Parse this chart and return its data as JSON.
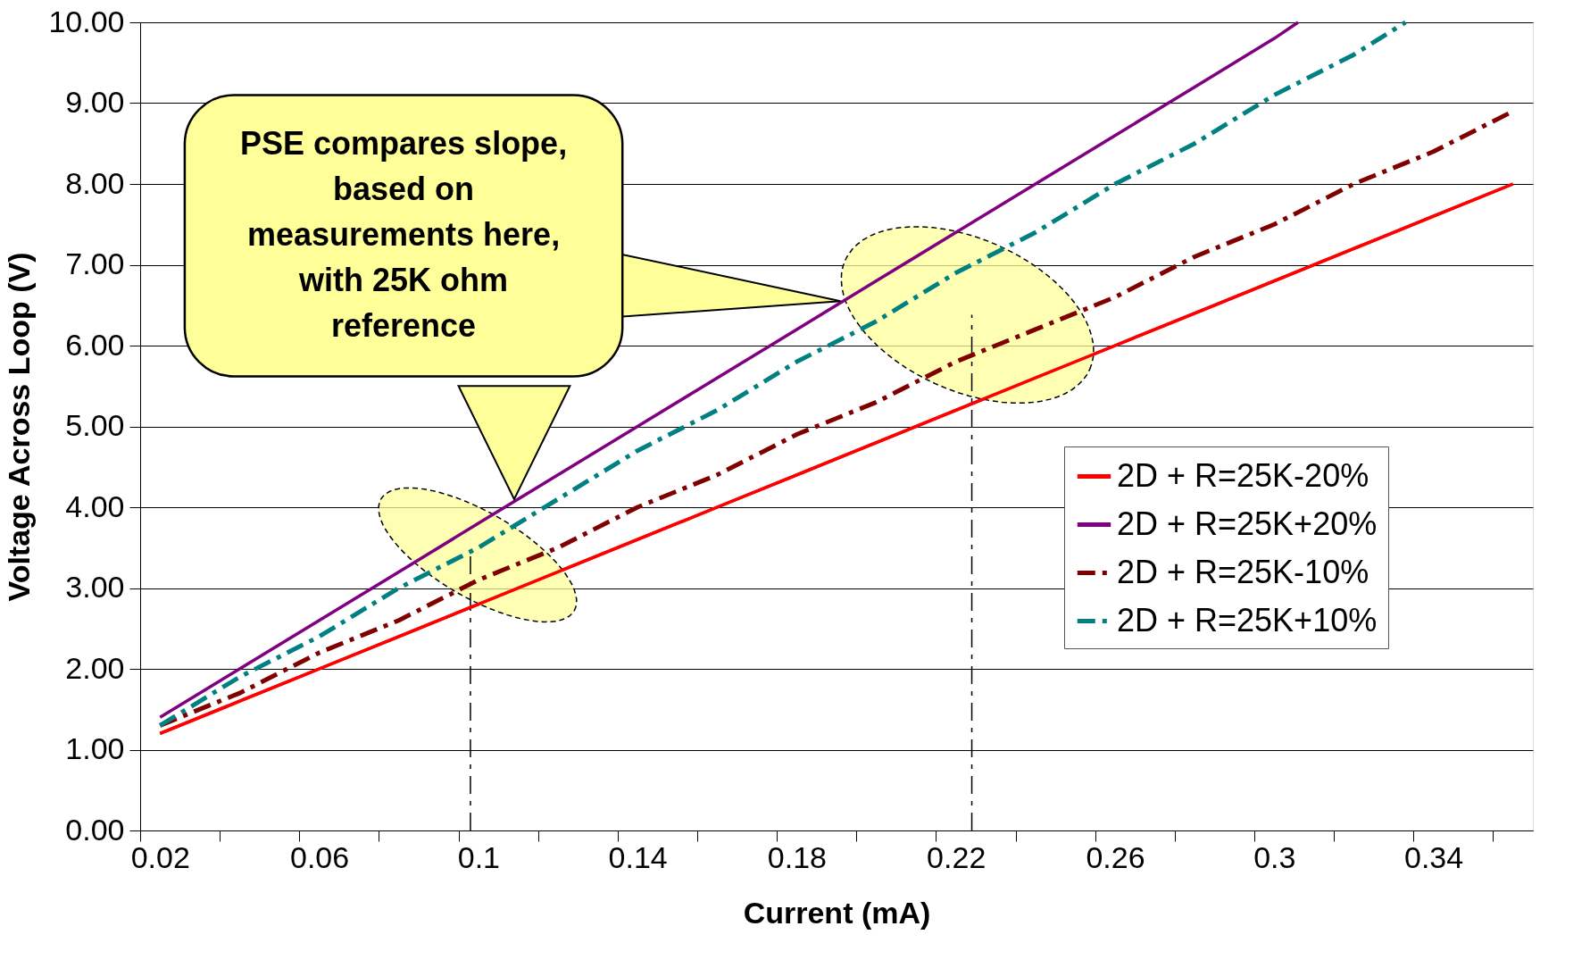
{
  "chart_data": {
    "type": "line",
    "xlabel": "Current  (mA)",
    "ylabel": "Voltage Across Loop (V)",
    "x": [
      0.02,
      0.04,
      0.06,
      0.08,
      0.1,
      0.12,
      0.14,
      0.16,
      0.18,
      0.2,
      0.22,
      0.24,
      0.26,
      0.28,
      0.3,
      0.32,
      0.34,
      0.36
    ],
    "series": [
      {
        "name": "2D + R=25K-20%",
        "color": "#ff0000",
        "line_style": "solid",
        "values": [
          1.2,
          1.6,
          2.0,
          2.4,
          2.8,
          3.2,
          3.6,
          4.0,
          4.4,
          4.8,
          5.2,
          5.6,
          6.0,
          6.4,
          6.8,
          7.2,
          7.6,
          8.0
        ]
      },
      {
        "name": "2D + R=25K+20%",
        "color": "#800080",
        "line_style": "solid",
        "x": [
          0.02,
          0.04,
          0.06,
          0.08,
          0.1,
          0.12,
          0.14,
          0.16,
          0.18,
          0.2,
          0.22,
          0.24,
          0.26,
          0.28,
          0.3,
          0.306
        ],
        "values": [
          1.4,
          2.0,
          2.6,
          3.2,
          3.8,
          4.4,
          5.0,
          5.6,
          6.2,
          6.8,
          7.4,
          8.0,
          8.6,
          9.2,
          9.8,
          10.0
        ]
      },
      {
        "name": "2D + R=25K-10%",
        "color": "#800000",
        "line_style": "dashed",
        "values": [
          1.3,
          1.7,
          2.2,
          2.6,
          3.1,
          3.5,
          4.0,
          4.4,
          4.9,
          5.3,
          5.8,
          6.2,
          6.6,
          7.1,
          7.5,
          8.0,
          8.4,
          8.9
        ]
      },
      {
        "name": "2D + R=25K+10%",
        "color": "#008080",
        "line_style": "dashed",
        "x": [
          0.02,
          0.04,
          0.06,
          0.08,
          0.1,
          0.12,
          0.14,
          0.16,
          0.18,
          0.2,
          0.22,
          0.24,
          0.26,
          0.28,
          0.3,
          0.32,
          0.333
        ],
        "values": [
          1.3,
          1.9,
          2.4,
          3.0,
          3.5,
          4.1,
          4.7,
          5.2,
          5.8,
          6.3,
          6.9,
          7.4,
          8.0,
          8.5,
          9.1,
          9.6,
          10.0
        ]
      }
    ],
    "xlim": [
      0.015,
      0.365
    ],
    "xticks": [
      {
        "value": 0.015,
        "label": null
      },
      0.02,
      {
        "value": 0.035,
        "label": null
      },
      {
        "value": 0.055,
        "label": null
      },
      0.06,
      {
        "value": 0.075,
        "label": null
      },
      {
        "value": 0.095,
        "label": null
      },
      0.1,
      {
        "value": 0.115,
        "label": null
      },
      {
        "value": 0.135,
        "label": null
      },
      0.14,
      {
        "value": 0.155,
        "label": null
      },
      {
        "value": 0.175,
        "label": null
      },
      0.18,
      {
        "value": 0.195,
        "label": null
      },
      {
        "value": 0.215,
        "label": null
      },
      0.22,
      {
        "value": 0.235,
        "label": null
      },
      {
        "value": 0.255,
        "label": null
      },
      0.26,
      {
        "value": 0.275,
        "label": null
      },
      {
        "value": 0.295,
        "label": null
      },
      0.3,
      {
        "value": 0.315,
        "label": null
      },
      {
        "value": 0.335,
        "label": null
      },
      0.34,
      {
        "value": 0.355,
        "label": null
      }
    ],
    "ylim": [
      0,
      10
    ],
    "yticks": [
      {
        "value": 0,
        "label": "0.00"
      },
      {
        "value": 1,
        "label": "1.00"
      },
      {
        "value": 2,
        "label": "2.00"
      },
      {
        "value": 3,
        "label": "3.00"
      },
      {
        "value": 4,
        "label": "4.00"
      },
      {
        "value": 5,
        "label": "5.00"
      },
      {
        "value": 6,
        "label": "6.00"
      },
      {
        "value": 7,
        "label": "7.00"
      },
      {
        "value": 8,
        "label": "8.00"
      },
      {
        "value": 9,
        "label": "9.00"
      },
      {
        "value": 10,
        "label": "10.00"
      }
    ],
    "grid": "y",
    "legend": "right",
    "marker": "none",
    "ref_lines": [
      {
        "axis": "x",
        "value": 0.098,
        "color": "#000000",
        "line_style": "dashed"
      },
      {
        "axis": "x",
        "value": 0.224,
        "color": "#000000",
        "line_style": "dashed"
      }
    ],
    "annotations": [
      "PSE compares slope,\nbased on\nmeasurements here,\nwith 25K ohm\nreference"
    ]
  }
}
